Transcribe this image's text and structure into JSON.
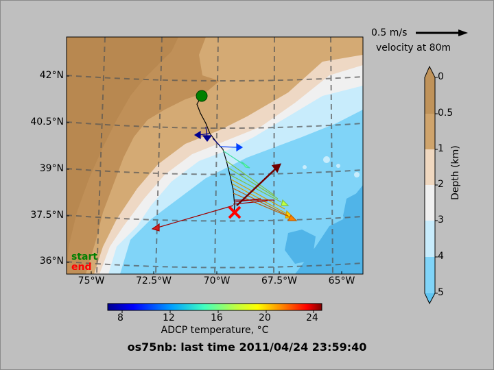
{
  "title": "os75nb: last time 2011/04/24 23:59:40",
  "velocity_key": {
    "speed": "0.5 m/s",
    "label": "velocity at 80m"
  },
  "legend": {
    "start": "start",
    "end": "end",
    "start_color": "#008000",
    "end_color": "#ff0000"
  },
  "lat_labels": [
    "42°N",
    "40.5°N",
    "39°N",
    "37.5°N",
    "36°N"
  ],
  "lon_labels": [
    "75°W",
    "72.5°W",
    "70°W",
    "67.5°W",
    "65°W"
  ],
  "depth_colorbar": {
    "label": "Depth (km)",
    "ticks": [
      "0",
      "0.5",
      "1",
      "2",
      "3",
      "4",
      "5"
    ],
    "colors": [
      "#c0935a",
      "#cfa46c",
      "#f0d8c0",
      "#f0f0f0",
      "#c8ecfc",
      "#80d4f8",
      "#60c4f0"
    ]
  },
  "temperature_colorbar": {
    "label": "ADCP temperature, °C",
    "ticks": [
      "8",
      "12",
      "16",
      "20",
      "24"
    ]
  },
  "colors": {
    "land": "#c8a068",
    "shelf": "#d4aa74",
    "slope": "#eed8c4",
    "deep1": "#f0f0f0",
    "deep2": "#c8ecfc",
    "deep3": "#80d4f8",
    "deep4": "#50b4e8",
    "start_marker": "#008000",
    "end_marker": "#ff0000"
  }
}
